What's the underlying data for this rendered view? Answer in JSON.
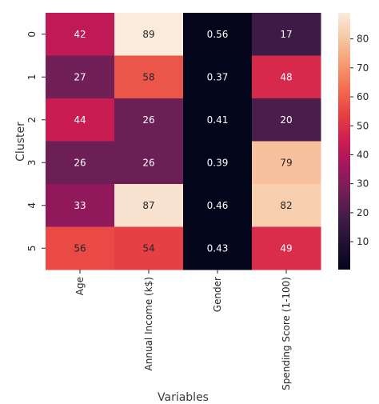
{
  "chart_data": {
    "type": "heatmap",
    "title": "",
    "xlabel": "Variables",
    "ylabel": "Cluster",
    "x_categories": [
      "Age",
      "Annual Income (k$)",
      "Gender",
      "Spending Score (1-100)"
    ],
    "y_categories": [
      "0",
      "1",
      "2",
      "3",
      "4",
      "5"
    ],
    "values": [
      [
        42,
        89,
        0.56,
        17
      ],
      [
        27,
        58,
        0.37,
        48
      ],
      [
        44,
        26,
        0.41,
        20
      ],
      [
        26,
        26,
        0.39,
        79
      ],
      [
        33,
        87,
        0.46,
        82
      ],
      [
        56,
        54,
        0.43,
        49
      ]
    ],
    "cell_labels": [
      [
        "42",
        "89",
        "0.56",
        "17"
      ],
      [
        "27",
        "58",
        "0.37",
        "48"
      ],
      [
        "44",
        "26",
        "0.41",
        "20"
      ],
      [
        "26",
        "26",
        "0.39",
        "79"
      ],
      [
        "33",
        "87",
        "0.46",
        "82"
      ],
      [
        "56",
        "54",
        "0.43",
        "49"
      ]
    ],
    "colorbar": {
      "colormap": "rocket",
      "range": [
        0.37,
        89
      ],
      "ticks": [
        10,
        20,
        30,
        40,
        50,
        60,
        70,
        80
      ]
    },
    "grid": false,
    "legend": "colorbar-right"
  }
}
